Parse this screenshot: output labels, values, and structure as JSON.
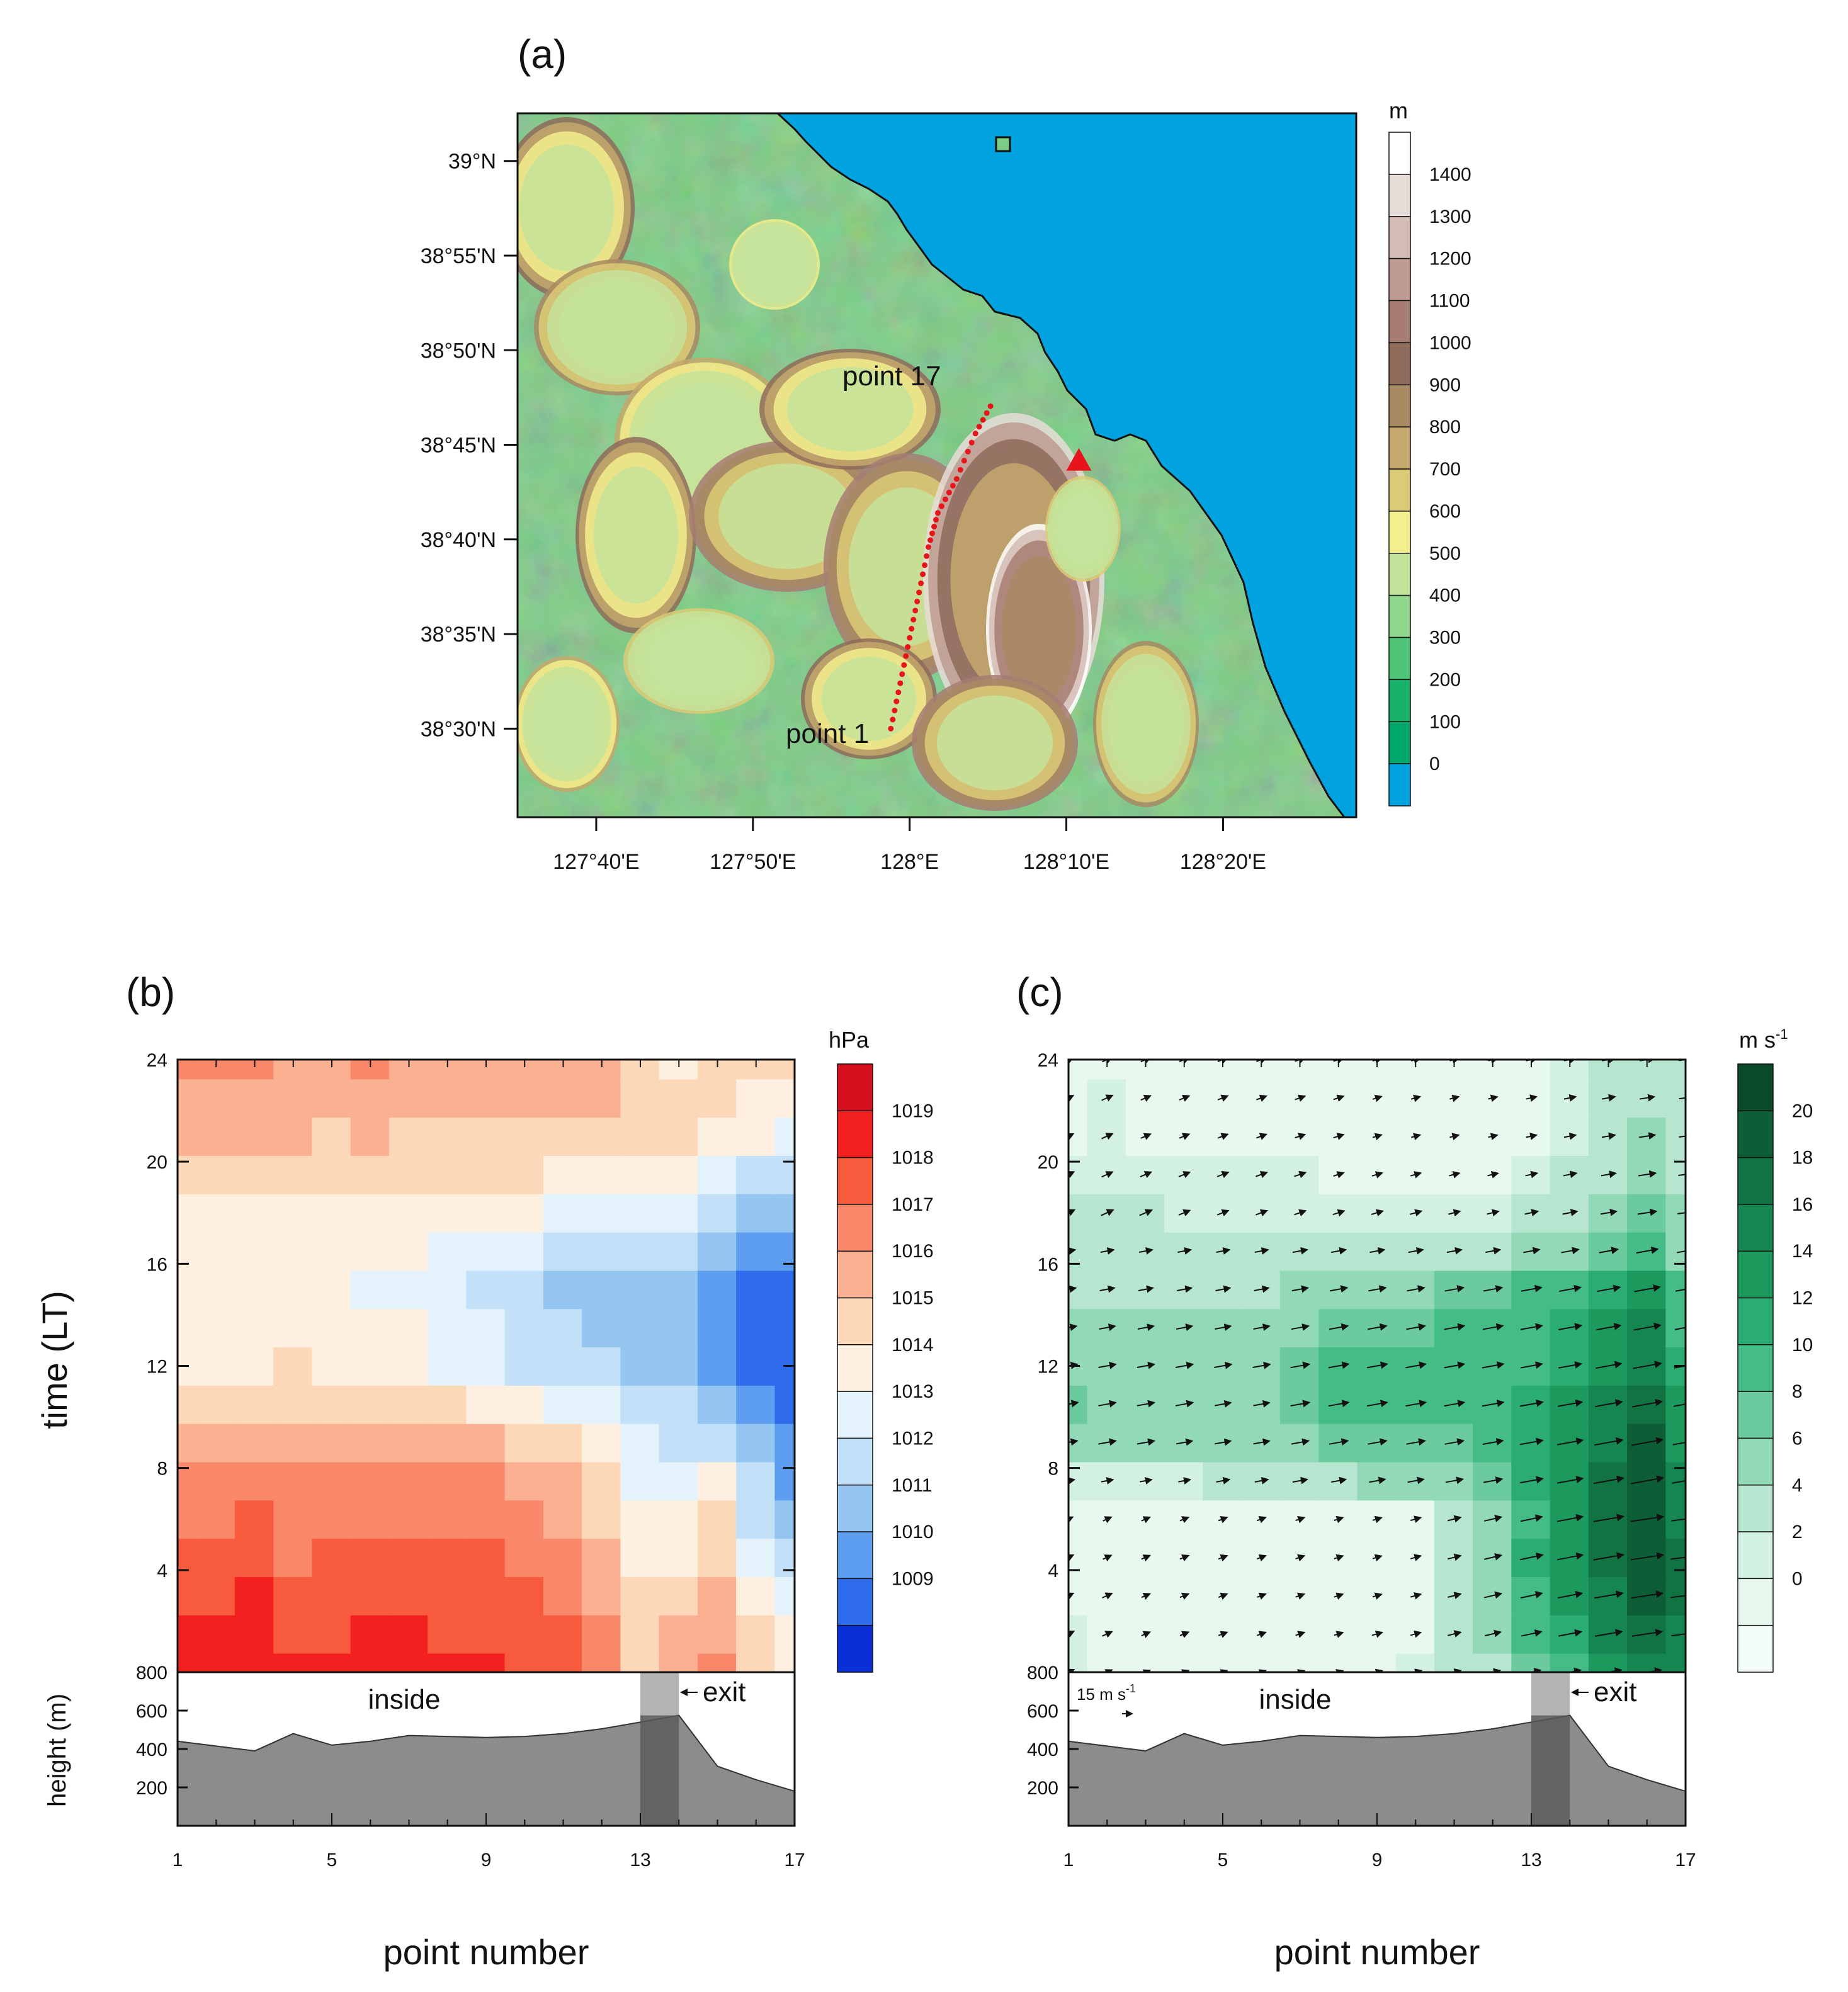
{
  "chart_data": [
    {
      "panel": "(a)",
      "type": "map",
      "yticks": [
        "39°N",
        "38°55'N",
        "38°50'N",
        "38°45'N",
        "38°40'N",
        "38°35'N",
        "38°30'N"
      ],
      "xticks": [
        "127°40'E",
        "127°50'E",
        "128°E",
        "128°10'E",
        "128°20'E"
      ],
      "colorbar": {
        "unit": "m",
        "levels": [
          "1400",
          "1300",
          "1200",
          "1100",
          "1000",
          "900",
          "800",
          "700",
          "600",
          "500",
          "400",
          "300",
          "200",
          "100",
          "0"
        ],
        "colors": [
          "#ffffff",
          "#e8dcd8",
          "#d3bcb5",
          "#bd9b91",
          "#a77d72",
          "#8e6b5b",
          "#a88a63",
          "#c4a86c",
          "#dccb76",
          "#f3ef8c",
          "#c4e39a",
          "#8fd58b",
          "#4ec477",
          "#18b268",
          "#00a86a",
          "#00a3e0"
        ]
      },
      "annotations": {
        "start": "point 1",
        "end": "point 17"
      },
      "transect_lonlat": [
        [
          127.98,
          38.5
        ],
        [
          127.99,
          38.54
        ],
        [
          128.0,
          38.58
        ],
        [
          128.01,
          38.62
        ],
        [
          128.02,
          38.66
        ],
        [
          128.03,
          38.69
        ],
        [
          128.05,
          38.72
        ],
        [
          128.07,
          38.76
        ],
        [
          128.09,
          38.79
        ]
      ],
      "marker": {
        "shape": "triangle",
        "color": "#e8141c",
        "lon": 128.18,
        "lat": 38.735
      }
    },
    {
      "panel": "(b)",
      "type": "heatmap",
      "x": [
        1,
        5,
        9,
        13,
        17
      ],
      "xlabel": "point number",
      "ylabel": "time (LT)",
      "yticks": [
        "800",
        "4",
        "8",
        "12",
        "16",
        "20",
        "24"
      ],
      "colorbar": {
        "unit": "hPa",
        "levels": [
          "1019",
          "1018",
          "1017",
          "1016",
          "1015",
          "1014",
          "1013",
          "1012",
          "1011",
          "1010",
          "1009"
        ],
        "colors": [
          "#d7101e",
          "#f42020",
          "#f75a3c",
          "#f9876a",
          "#fbb091",
          "#fcd8b8",
          "#fdf0e0",
          "#e4f2fb",
          "#c2e0f7",
          "#95c6f2",
          "#5d9ef0",
          "#2f6ced",
          "#0b2fd6"
        ]
      },
      "field_rows": [
        [
          1019,
          1019,
          1019,
          1019,
          1019,
          1019,
          1019,
          1019,
          1019,
          1018,
          1018,
          1017,
          1015,
          1016,
          1017,
          1015,
          1014
        ],
        [
          1019,
          1019,
          1019,
          1018,
          1018,
          1019,
          1019,
          1018,
          1018,
          1018,
          1018,
          1017,
          1015,
          1016,
          1016,
          1015,
          1014
        ],
        [
          1018,
          1018,
          1019,
          1018,
          1018,
          1018,
          1018,
          1018,
          1018,
          1018,
          1017,
          1016,
          1015,
          1015,
          1016,
          1014,
          1013
        ],
        [
          1018,
          1018,
          1018,
          1017,
          1018,
          1018,
          1018,
          1018,
          1018,
          1017,
          1017,
          1016,
          1014,
          1014,
          1015,
          1013,
          1012
        ],
        [
          1017,
          1017,
          1018,
          1017,
          1017,
          1017,
          1017,
          1017,
          1017,
          1017,
          1016,
          1015,
          1014,
          1014,
          1015,
          1012,
          1011
        ],
        [
          1017,
          1017,
          1017,
          1017,
          1017,
          1017,
          1017,
          1017,
          1017,
          1016,
          1016,
          1015,
          1013,
          1013,
          1014,
          1012,
          1010
        ],
        [
          1016,
          1016,
          1016,
          1016,
          1016,
          1016,
          1016,
          1016,
          1016,
          1015,
          1015,
          1014,
          1013,
          1012,
          1012,
          1011,
          1010
        ],
        [
          1015,
          1015,
          1015,
          1015,
          1015,
          1015,
          1015,
          1015,
          1014,
          1014,
          1013,
          1013,
          1012,
          1012,
          1011,
          1010,
          1009
        ],
        [
          1014,
          1014,
          1014,
          1015,
          1014,
          1014,
          1014,
          1013,
          1013,
          1012,
          1012,
          1012,
          1011,
          1011,
          1010,
          1009,
          1009
        ],
        [
          1014,
          1014,
          1014,
          1014,
          1014,
          1014,
          1014,
          1013,
          1013,
          1012,
          1012,
          1011,
          1011,
          1011,
          1010,
          1009,
          1009
        ],
        [
          1014,
          1014,
          1014,
          1014,
          1014,
          1013,
          1013,
          1013,
          1012,
          1012,
          1011,
          1011,
          1011,
          1011,
          1010,
          1009,
          1009
        ],
        [
          1014,
          1014,
          1014,
          1014,
          1014,
          1014,
          1014,
          1013,
          1013,
          1013,
          1012,
          1012,
          1012,
          1012,
          1011,
          1010,
          1010
        ],
        [
          1014,
          1014,
          1014,
          1014,
          1014,
          1014,
          1014,
          1014,
          1014,
          1014,
          1013,
          1013,
          1013,
          1013,
          1012,
          1011,
          1011
        ],
        [
          1015,
          1015,
          1015,
          1015,
          1015,
          1015,
          1015,
          1015,
          1015,
          1015,
          1014,
          1014,
          1014,
          1014,
          1013,
          1012,
          1012
        ],
        [
          1016,
          1016,
          1016,
          1016,
          1015,
          1016,
          1015,
          1015,
          1015,
          1015,
          1015,
          1015,
          1015,
          1015,
          1014,
          1014,
          1013
        ],
        [
          1016,
          1016,
          1016,
          1016,
          1016,
          1016,
          1016,
          1016,
          1016,
          1016,
          1016,
          1016,
          1015,
          1015,
          1015,
          1014,
          1014
        ],
        [
          1017,
          1017,
          1017,
          1016,
          1016,
          1017,
          1016,
          1016,
          1016,
          1016,
          1016,
          1016,
          1015,
          1014,
          1015,
          1015,
          1015
        ]
      ],
      "bottom_panel": {
        "ylabel": "height (m)",
        "yticks": [
          "800",
          "600",
          "400",
          "200"
        ],
        "labels": {
          "inside": "inside",
          "exit": "exit"
        },
        "terrain_height": [
          440,
          415,
          390,
          480,
          420,
          440,
          470,
          465,
          460,
          465,
          480,
          505,
          540,
          575,
          310,
          240,
          180
        ]
      }
    },
    {
      "panel": "(c)",
      "type": "heatmap",
      "x": [
        1,
        5,
        9,
        13,
        17
      ],
      "xlabel": "point number",
      "yticks": [
        "800",
        "4",
        "8",
        "12",
        "16",
        "20",
        "24"
      ],
      "colorbar": {
        "unit": "m s",
        "unit_sup": "-1",
        "levels": [
          "20",
          "18",
          "16",
          "14",
          "12",
          "10",
          "8",
          "6",
          "4",
          "2",
          "0"
        ],
        "colors": [
          "#0a4a2a",
          "#0d5e36",
          "#117242",
          "#158650",
          "#1c9a5e",
          "#2aac72",
          "#44bc86",
          "#6bcb9e",
          "#92d9b7",
          "#b6e6cf",
          "#d3f1e3",
          "#e7f8ef",
          "#f4fcf8"
        ]
      },
      "field_rows": [
        [
          5,
          4,
          3,
          3,
          3,
          3,
          3,
          3,
          4,
          5,
          6,
          7,
          10,
          12,
          15,
          17,
          16
        ],
        [
          5,
          4,
          3,
          3,
          3,
          3,
          3,
          3,
          4,
          4,
          6,
          8,
          11,
          13,
          16,
          18,
          17
        ],
        [
          4,
          4,
          3,
          3,
          3,
          3,
          3,
          3,
          3,
          4,
          6,
          9,
          12,
          14,
          17,
          19,
          18
        ],
        [
          4,
          3,
          3,
          3,
          3,
          3,
          3,
          3,
          3,
          4,
          6,
          9,
          13,
          15,
          18,
          20,
          18
        ],
        [
          3,
          3,
          3,
          3,
          3,
          3,
          3,
          3,
          3,
          4,
          6,
          9,
          12,
          15,
          18,
          20,
          17
        ],
        [
          5,
          5,
          5,
          5,
          6,
          6,
          7,
          7,
          8,
          8,
          9,
          10,
          13,
          15,
          18,
          20,
          16
        ],
        [
          9,
          9,
          9,
          8,
          8,
          8,
          9,
          10,
          10,
          10,
          10,
          11,
          13,
          15,
          17,
          19,
          15
        ],
        [
          10,
          9,
          9,
          9,
          8,
          8,
          10,
          11,
          11,
          11,
          11,
          12,
          13,
          14,
          16,
          18,
          14
        ],
        [
          9,
          9,
          9,
          9,
          9,
          9,
          10,
          11,
          11,
          11,
          11,
          12,
          12,
          13,
          15,
          17,
          13
        ],
        [
          8,
          8,
          8,
          8,
          8,
          8,
          9,
          10,
          10,
          10,
          11,
          11,
          12,
          13,
          14,
          16,
          12
        ],
        [
          7,
          7,
          7,
          7,
          7,
          7,
          8,
          9,
          9,
          9,
          10,
          10,
          11,
          12,
          13,
          15,
          11
        ],
        [
          6,
          6,
          6,
          6,
          6,
          6,
          7,
          7,
          7,
          7,
          7,
          7,
          8,
          9,
          10,
          12,
          9
        ],
        [
          6,
          6,
          6,
          5,
          5,
          5,
          5,
          5,
          5,
          5,
          5,
          5,
          6,
          7,
          8,
          10,
          8
        ],
        [
          5,
          5,
          5,
          5,
          5,
          5,
          5,
          4,
          4,
          4,
          4,
          4,
          5,
          6,
          7,
          9,
          7
        ],
        [
          4,
          5,
          4,
          4,
          4,
          4,
          4,
          4,
          3,
          3,
          3,
          3,
          4,
          5,
          6,
          8,
          6
        ],
        [
          4,
          5,
          4,
          4,
          4,
          4,
          4,
          4,
          3,
          3,
          3,
          3,
          4,
          5,
          6,
          7,
          6
        ],
        [
          4,
          4,
          4,
          4,
          4,
          4,
          4,
          4,
          3,
          3,
          3,
          3,
          4,
          5,
          6,
          7,
          6
        ]
      ],
      "reference_vector": {
        "label": "15 m s",
        "label_sup": "-1"
      },
      "bottom_panel": {
        "yticks": [
          "800",
          "600",
          "400",
          "200"
        ],
        "labels": {
          "inside": "inside",
          "exit": "exit"
        },
        "terrain_height": [
          440,
          415,
          390,
          480,
          420,
          440,
          470,
          465,
          460,
          465,
          480,
          505,
          540,
          575,
          310,
          240,
          180
        ]
      }
    }
  ]
}
